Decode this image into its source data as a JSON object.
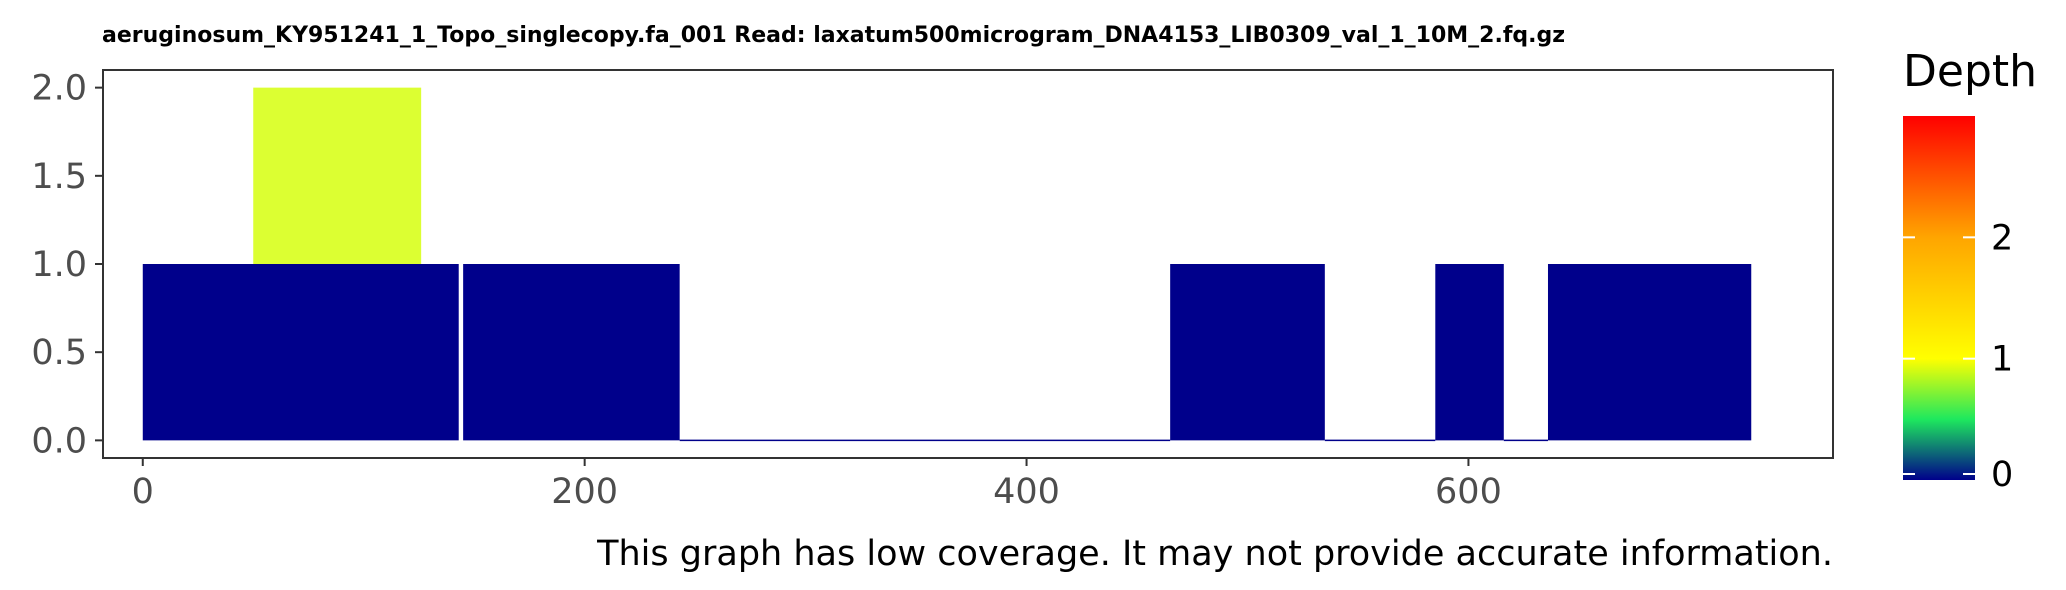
{
  "chart_data": {
    "type": "bar",
    "title": "aeruginosum_KY951241_1_Topo_singlecopy.fa_001   Read: laxatum500microgram_DNA4153_LIB0309_val_1_10M_2.fq.gz",
    "xlabel": "",
    "ylabel": "",
    "xlim": [
      -18,
      765
    ],
    "ylim": [
      -0.1,
      2.1
    ],
    "x_ticks": [
      0,
      200,
      400,
      600
    ],
    "y_ticks": [
      0.0,
      0.5,
      1.0,
      1.5,
      2.0
    ],
    "y_tick_labels": [
      "0.0",
      "0.5",
      "1.0",
      "1.5",
      "2.0"
    ],
    "grid": false,
    "segments": [
      {
        "x_start": 0,
        "x_end": 143,
        "y_bottom": 0,
        "y_top": 1,
        "depth": 0
      },
      {
        "x_start": 50,
        "x_end": 126,
        "y_bottom": 1,
        "y_top": 2,
        "depth": 1
      },
      {
        "x_start": 145,
        "x_end": 243,
        "y_bottom": 0,
        "y_top": 1,
        "depth": 0
      },
      {
        "x_start": 243,
        "x_end": 465,
        "y_bottom": 0,
        "y_top": 0,
        "depth": 0
      },
      {
        "x_start": 465,
        "x_end": 535,
        "y_bottom": 0,
        "y_top": 1,
        "depth": 0
      },
      {
        "x_start": 535,
        "x_end": 585,
        "y_bottom": 0,
        "y_top": 0,
        "depth": 0
      },
      {
        "x_start": 585,
        "x_end": 616,
        "y_bottom": 0,
        "y_top": 1,
        "depth": 0
      },
      {
        "x_start": 616,
        "x_end": 636,
        "y_bottom": 0,
        "y_top": 0,
        "depth": 0
      },
      {
        "x_start": 636,
        "x_end": 728,
        "y_bottom": 0,
        "y_top": 1,
        "depth": 0
      }
    ],
    "legend": {
      "title": "Depth",
      "placement": "right",
      "range": [
        0,
        3
      ],
      "ticks": [
        0,
        1,
        2
      ],
      "tick_labels": [
        "0",
        "1",
        "2"
      ],
      "colors": [
        {
          "value": 0,
          "color": "#00008B"
        },
        {
          "value": 0.5,
          "color": "#1EE85E"
        },
        {
          "value": 1,
          "color": "#FFFF00"
        },
        {
          "value": 2,
          "color": "#FFA500"
        },
        {
          "value": 3,
          "color": "#FF0000"
        }
      ]
    },
    "note": "This graph has low coverage. It may not provide accurate information."
  },
  "colors": {
    "depth_0": "#00008B",
    "depth_1": "#DCFF32",
    "panel_border": "#333333",
    "axis_text": "#4d4d4d"
  }
}
